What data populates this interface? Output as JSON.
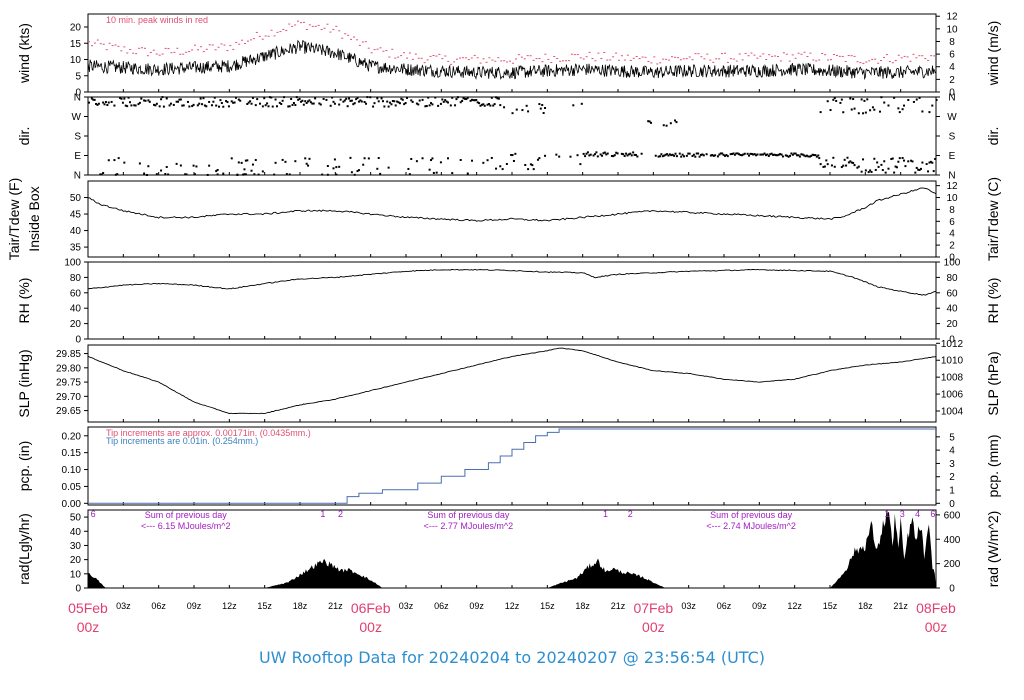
{
  "page_title": "UW Rooftop Data for 20240204  to  20240207 @ 23:56:54  (UTC)",
  "colors": {
    "axis": "#000000",
    "trace": "#000000",
    "gust": "#e05070",
    "pcp_old": "#e05070",
    "pcp_new": "#3a7fc0",
    "pcp_line": "#4a6fb0",
    "day_label": "#e04070",
    "rad_note": "#a020c0",
    "title": "#2e8fd0"
  },
  "chart_data": [
    {
      "id": "wind",
      "type": "line",
      "ylabel_left": "wind (kts)",
      "ylabel_right": "wind (m/s)",
      "ylim_left": [
        0,
        24
      ],
      "yticks_left": [
        0,
        5,
        10,
        15,
        20
      ],
      "ylim_right": [
        0,
        12.35
      ],
      "yticks_right": [
        0,
        2,
        4,
        6,
        8,
        10,
        12
      ],
      "annotation": "10 min. peak winds in red",
      "series": [
        {
          "role": "wind",
          "x_hours": [
            0,
            3,
            6,
            9,
            12,
            15,
            18,
            21,
            24,
            27,
            30,
            33,
            36,
            39,
            42,
            45,
            48,
            51,
            54,
            57,
            60,
            63,
            66,
            69,
            72
          ],
          "values": [
            8,
            7.5,
            7,
            7.5,
            8,
            11,
            14,
            12,
            8,
            7,
            6.5,
            6,
            6,
            6.5,
            7,
            6.5,
            6,
            6.5,
            6.5,
            6.5,
            7,
            6.5,
            6,
            6,
            6.5
          ]
        },
        {
          "role": "gust",
          "x_hours": [
            0,
            3,
            6,
            9,
            12,
            15,
            18,
            21,
            24,
            27,
            30,
            33,
            36,
            39,
            42,
            45,
            48,
            51,
            54,
            57,
            60,
            63,
            66,
            69,
            72
          ],
          "values": [
            15,
            13,
            12,
            13,
            14,
            18,
            21,
            19,
            13,
            11,
            10,
            10,
            10,
            10.5,
            11,
            10.5,
            10,
            10.5,
            10.5,
            10.5,
            11,
            10.5,
            10,
            10.5,
            11
          ]
        }
      ]
    },
    {
      "id": "dir",
      "type": "scatter",
      "ylabel_left": "dir.",
      "ylabel_right": "dir.",
      "ylim_left": [
        0,
        360
      ],
      "tick_values": [
        0,
        90,
        180,
        270,
        360
      ],
      "tick_labels": [
        "N",
        "E",
        "S",
        "W",
        "N"
      ],
      "bands": [
        {
          "x_range": [
            0,
            35
          ],
          "center": 340,
          "spread": 25,
          "density": 0.85
        },
        {
          "x_range": [
            0,
            35
          ],
          "center": 40,
          "spread": 40,
          "density": 0.25
        },
        {
          "x_range": [
            35,
            42
          ],
          "center": 300,
          "spread": 30,
          "density": 0.3
        },
        {
          "x_range": [
            35,
            42
          ],
          "center": 60,
          "spread": 40,
          "density": 0.3
        },
        {
          "x_range": [
            42,
            47
          ],
          "center": 95,
          "spread": 10,
          "density": 0.9
        },
        {
          "x_range": [
            47,
            50
          ],
          "center": 230,
          "spread": 25,
          "density": 0.4
        },
        {
          "x_range": [
            48,
            62
          ],
          "center": 92,
          "spread": 8,
          "density": 0.9
        },
        {
          "x_range": [
            62,
            72
          ],
          "center": 45,
          "spread": 35,
          "density": 0.7
        },
        {
          "x_range": [
            62,
            72
          ],
          "center": 320,
          "spread": 40,
          "density": 0.35
        }
      ]
    },
    {
      "id": "temp",
      "type": "line",
      "ylabel_left": "Tair/Tdew (F)\nInside Box",
      "ylabel_right": "Tair/Tdew (C)",
      "ylim_left": [
        32,
        55
      ],
      "yticks_left": [
        35,
        40,
        45,
        50
      ],
      "ylim_right": [
        0,
        12.78
      ],
      "yticks_right": [
        0,
        2,
        4,
        6,
        8,
        10,
        12
      ],
      "series": [
        {
          "name": "",
          "x_hours": [
            0,
            1,
            3,
            6,
            9,
            12,
            15,
            18,
            21,
            24,
            27,
            30,
            33,
            36,
            39,
            42,
            45,
            48,
            51,
            54,
            57,
            60,
            63,
            64,
            66,
            67,
            69,
            71,
            72
          ],
          "values": [
            50,
            48,
            46,
            44,
            44,
            45,
            45,
            46,
            46,
            45,
            44,
            43.5,
            43,
            43.5,
            43,
            44,
            45,
            46,
            45.5,
            45,
            44.5,
            44,
            43.5,
            44,
            47,
            49,
            51,
            53,
            51
          ]
        }
      ]
    },
    {
      "id": "rh",
      "type": "line",
      "ylabel_left": "RH (%)",
      "ylabel_right": "RH (%)",
      "ylim_left": [
        0,
        100
      ],
      "yticks_left": [
        0,
        20,
        40,
        60,
        80,
        100
      ],
      "yticks_right": [
        0,
        20,
        40,
        60,
        80,
        100
      ],
      "series": [
        {
          "name": "",
          "x_hours": [
            0,
            3,
            6,
            9,
            12,
            15,
            18,
            21,
            24,
            27,
            30,
            33,
            36,
            39,
            42,
            43,
            45,
            48,
            51,
            54,
            57,
            60,
            63,
            65,
            67,
            69,
            71,
            72
          ],
          "values": [
            65,
            70,
            72,
            70,
            65,
            72,
            78,
            80,
            84,
            88,
            90,
            90,
            89,
            87,
            86,
            80,
            84,
            86,
            88,
            89,
            90,
            89,
            88,
            80,
            68,
            62,
            57,
            62
          ]
        }
      ]
    },
    {
      "id": "slp",
      "type": "line",
      "ylabel_left": "SLP (inHg)",
      "ylabel_right": "SLP (hPa)",
      "ylim_left": [
        29.61,
        29.88
      ],
      "yticks_left": [
        29.65,
        29.7,
        29.75,
        29.8,
        29.85
      ],
      "ytick_labels_left": [
        "29.65",
        "29.70",
        "29.75",
        "29.80",
        "29.85"
      ],
      "ylim_right": [
        1002.7,
        1011.8
      ],
      "yticks_right": [
        1004,
        1006,
        1008,
        1010,
        1012
      ],
      "series": [
        {
          "name": "",
          "x_hours": [
            0,
            3,
            6,
            9,
            12,
            15,
            18,
            21,
            24,
            27,
            30,
            33,
            36,
            39,
            40,
            42,
            45,
            48,
            51,
            54,
            57,
            60,
            63,
            66,
            69,
            72
          ],
          "values": [
            29.84,
            29.79,
            29.75,
            29.68,
            29.64,
            29.64,
            29.67,
            29.69,
            29.72,
            29.75,
            29.78,
            29.81,
            29.84,
            29.86,
            29.87,
            29.86,
            29.82,
            29.79,
            29.78,
            29.76,
            29.75,
            29.76,
            29.79,
            29.81,
            29.82,
            29.84
          ]
        }
      ]
    },
    {
      "id": "pcp",
      "type": "line",
      "ylabel_left": "pcp. (in)",
      "ylabel_right": "pcp. (mm)",
      "ylim_left": [
        -0.005,
        0.226
      ],
      "yticks_left": [
        0.0,
        0.05,
        0.1,
        0.15,
        0.2
      ],
      "ytick_labels_left": [
        "0.00",
        "0.05",
        "0.10",
        "0.15",
        "0.20"
      ],
      "ylim_right": [
        -0.127,
        5.74
      ],
      "yticks_right": [
        0,
        1,
        2,
        3,
        4,
        5
      ],
      "legend_old": "Tip increments are approx. 0.00171in. (0.0435mm.)",
      "legend_new": "Tip increments are 0.01in. (0.254mm.)",
      "series": [
        {
          "name": "",
          "x_hours": [
            0,
            21,
            22,
            23,
            25,
            28,
            30,
            32,
            34,
            35,
            36,
            37,
            38,
            39,
            40,
            72
          ],
          "values": [
            0,
            0,
            0.02,
            0.03,
            0.04,
            0.06,
            0.08,
            0.1,
            0.12,
            0.14,
            0.16,
            0.18,
            0.2,
            0.21,
            0.22,
            0.22
          ]
        }
      ]
    },
    {
      "id": "rad",
      "type": "area",
      "ylabel_left": "rad(Lgly/hr)",
      "ylabel_right": "rad (W/m^2)",
      "ylim_left": [
        0,
        55
      ],
      "yticks_left": [
        0,
        10,
        20,
        30,
        40,
        50
      ],
      "ylim_right": [
        0,
        640
      ],
      "yticks_right": [
        0,
        200,
        400,
        600
      ],
      "day_notes": [
        {
          "x_hour": 8.3,
          "line1": "Sum of previous day",
          "line2": "<--- 6.15 MJoules/m^2"
        },
        {
          "x_hour": 32.3,
          "line1": "Sum of previous day",
          "line2": "<--- 2.77 MJoules/m^2"
        },
        {
          "x_hour": 56.3,
          "line1": "Sum of previous day",
          "line2": "<--- 2.74 MJoules/m^2"
        }
      ],
      "markers": [
        {
          "x_hour": 0.1,
          "label": "6"
        },
        {
          "x_hour": 19.6,
          "label": "1"
        },
        {
          "x_hour": 21.1,
          "label": "2"
        },
        {
          "x_hour": 43.6,
          "label": "1"
        },
        {
          "x_hour": 45.7,
          "label": "2"
        },
        {
          "x_hour": 67.5,
          "label": "1"
        },
        {
          "x_hour": 68.8,
          "label": "3"
        },
        {
          "x_hour": 70.1,
          "label": "4"
        },
        {
          "x_hour": 71.4,
          "label": "6"
        }
      ],
      "series": [
        {
          "name": "",
          "x_hours": [
            0,
            0.5,
            1,
            1.5,
            15,
            17,
            18.5,
            19.5,
            20,
            21,
            21.5,
            22,
            23,
            24.5,
            25,
            39,
            40,
            41.5,
            42.5,
            43.3,
            44,
            44.5,
            45,
            46,
            46.5,
            47,
            48,
            48.5,
            49,
            63,
            63.8,
            64.5,
            65,
            66,
            66.5,
            67,
            67.3,
            67.7,
            68,
            68.3,
            68.5,
            68.8,
            69,
            69.3,
            69.7,
            70,
            70.3,
            70.7,
            71,
            71.4,
            71.7,
            72
          ],
          "values": [
            10,
            8,
            4,
            0,
            0,
            4,
            12,
            17,
            19,
            15,
            12,
            13,
            10,
            3,
            0,
            0,
            3,
            7,
            15,
            19,
            11,
            14,
            12,
            10,
            9,
            8,
            4,
            2,
            0,
            0,
            7,
            15,
            25,
            30,
            44,
            25,
            38,
            50,
            55,
            28,
            52,
            28,
            45,
            20,
            40,
            47,
            33,
            45,
            22,
            42,
            15,
            8
          ]
        }
      ]
    }
  ],
  "x_axis": {
    "hour_ticks": [
      {
        "x_hour": 3,
        "label": "03z"
      },
      {
        "x_hour": 6,
        "label": "06z"
      },
      {
        "x_hour": 9,
        "label": "09z"
      },
      {
        "x_hour": 12,
        "label": "12z"
      },
      {
        "x_hour": 15,
        "label": "15z"
      },
      {
        "x_hour": 18,
        "label": "18z"
      },
      {
        "x_hour": 21,
        "label": "21z"
      },
      {
        "x_hour": 27,
        "label": "03z"
      },
      {
        "x_hour": 30,
        "label": "06z"
      },
      {
        "x_hour": 33,
        "label": "09z"
      },
      {
        "x_hour": 36,
        "label": "12z"
      },
      {
        "x_hour": 39,
        "label": "15z"
      },
      {
        "x_hour": 42,
        "label": "18z"
      },
      {
        "x_hour": 45,
        "label": "21z"
      },
      {
        "x_hour": 51,
        "label": "03z"
      },
      {
        "x_hour": 54,
        "label": "06z"
      },
      {
        "x_hour": 57,
        "label": "09z"
      },
      {
        "x_hour": 60,
        "label": "12z"
      },
      {
        "x_hour": 63,
        "label": "15z"
      },
      {
        "x_hour": 66,
        "label": "18z"
      },
      {
        "x_hour": 69,
        "label": "21z"
      }
    ],
    "day_ticks": [
      {
        "x_hour": 0,
        "label": "05Feb",
        "sub": "00z"
      },
      {
        "x_hour": 24,
        "label": "06Feb",
        "sub": "00z"
      },
      {
        "x_hour": 48,
        "label": "07Feb",
        "sub": "00z"
      },
      {
        "x_hour": 72,
        "label": "08Feb",
        "sub": "00z"
      }
    ]
  }
}
